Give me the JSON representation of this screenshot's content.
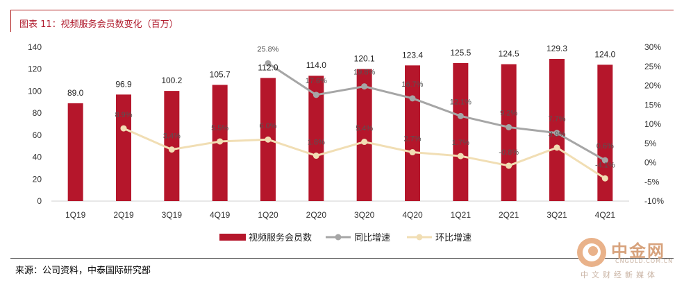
{
  "header": {
    "title": "图表 11：视频服务会员数变化（百万）"
  },
  "footer": {
    "source": "来源：公司资料，中泰国际研究部"
  },
  "watermark": {
    "name": "中金网",
    "url": "CNGOLD.COM.CN",
    "tagline": "中文财经新媒体"
  },
  "colors": {
    "bar": "#b5162b",
    "yoy": "#a6a6a6",
    "qoq": "#f1deb4",
    "accent": "#b01c2e"
  },
  "chart_data": {
    "type": "bar",
    "categories": [
      "1Q19",
      "2Q19",
      "3Q19",
      "4Q19",
      "1Q20",
      "2Q20",
      "3Q20",
      "4Q20",
      "1Q21",
      "2Q21",
      "3Q21",
      "4Q21"
    ],
    "left_axis": {
      "min": 0,
      "max": 140,
      "ticks": [
        "0",
        "20",
        "40",
        "60",
        "80",
        "100",
        "120",
        "140"
      ]
    },
    "right_axis": {
      "min": -10,
      "max": 30,
      "ticks": [
        "-10%",
        "-5%",
        "0%",
        "5%",
        "10%",
        "15%",
        "20%",
        "25%",
        "30%"
      ]
    },
    "grid": false,
    "legend_position": "bottom",
    "series": [
      {
        "name": "视频服务会员数",
        "kind": "bar",
        "axis": "left",
        "values": [
          89.0,
          96.9,
          100.2,
          105.7,
          112.0,
          114.0,
          120.1,
          123.4,
          125.5,
          124.5,
          129.3,
          124.0
        ],
        "labels": [
          "89.0",
          "96.9",
          "100.2",
          "105.7",
          "112.0",
          "114.0",
          "120.1",
          "123.4",
          "125.5",
          "124.5",
          "129.3",
          "124.0"
        ]
      },
      {
        "name": "同比增速",
        "kind": "line",
        "axis": "right",
        "values": [
          null,
          null,
          null,
          null,
          25.8,
          17.6,
          19.8,
          16.7,
          12.1,
          9.2,
          7.7,
          0.6
        ],
        "labels": [
          "",
          "",
          "",
          "",
          "25.8%",
          "17.6%",
          "19.8%",
          "16.7%",
          "12.1%",
          "9.2%",
          "7.7%",
          "0.6%"
        ]
      },
      {
        "name": "环比增速",
        "kind": "line",
        "axis": "right",
        "values": [
          null,
          8.9,
          3.4,
          5.5,
          6.0,
          1.8,
          5.4,
          2.7,
          1.7,
          -0.8,
          3.9,
          -4.1
        ],
        "labels": [
          "",
          "8.9%",
          "3.4%",
          "5.5%",
          "6.0%",
          "1.8%",
          "5.4%",
          "2.7%",
          "1.7%",
          "-0.8%",
          "3.9%",
          "-4.1%"
        ]
      }
    ]
  }
}
